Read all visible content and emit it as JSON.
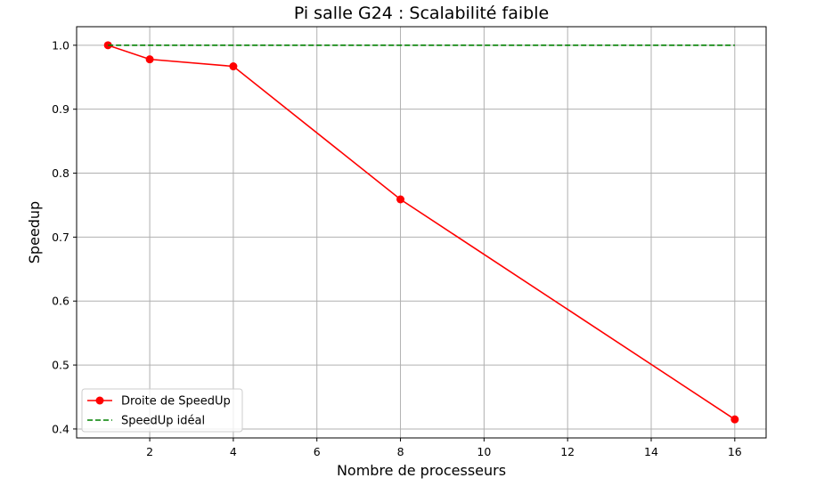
{
  "chart_data": {
    "type": "line",
    "title": "Pi salle G24 : Scalabilité faible",
    "xlabel": "Nombre de processeurs",
    "ylabel": "Speedup",
    "xlim": [
      0.25,
      16.75
    ],
    "ylim": [
      0.386,
      1.029
    ],
    "xticks": [
      2,
      4,
      6,
      8,
      10,
      12,
      14,
      16
    ],
    "xtick_labels": [
      "2",
      "4",
      "6",
      "8",
      "10",
      "12",
      "14",
      "16"
    ],
    "yticks": [
      0.4,
      0.5,
      0.6,
      0.7,
      0.8,
      0.9,
      1.0
    ],
    "ytick_labels": [
      "0.4",
      "0.5",
      "0.6",
      "0.7",
      "0.8",
      "0.9",
      "1.0"
    ],
    "grid": true,
    "legend_position": "lower-left",
    "series": [
      {
        "name": "Droite de SpeedUp",
        "color": "#ff0000",
        "linestyle": "solid",
        "marker": "circle",
        "x": [
          1,
          2,
          4,
          8,
          16
        ],
        "y": [
          1.0,
          0.978,
          0.967,
          0.759,
          0.415
        ]
      },
      {
        "name": "SpeedUp idéal",
        "color": "#008000",
        "linestyle": "dashed",
        "marker": "none",
        "x": [
          1,
          16
        ],
        "y": [
          1.0,
          1.0
        ]
      }
    ]
  }
}
